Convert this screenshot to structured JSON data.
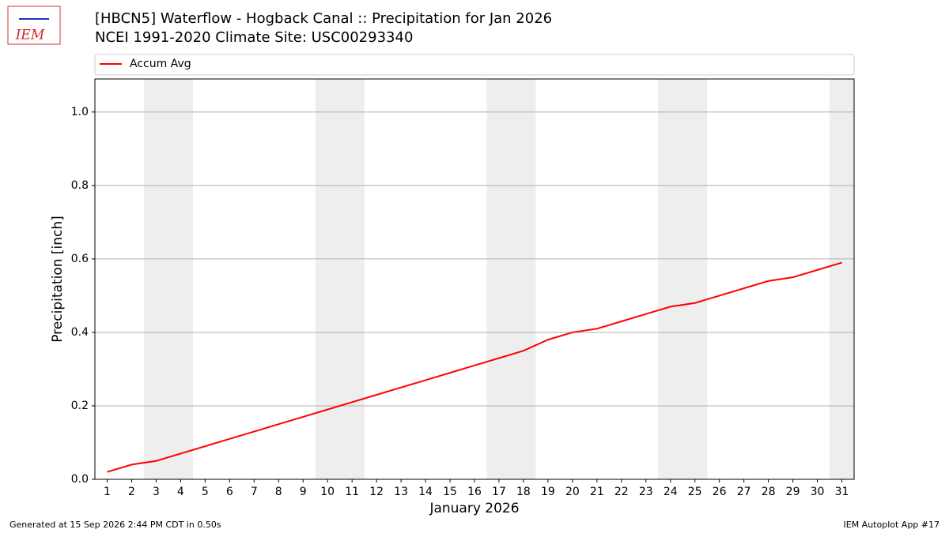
{
  "chart_data": {
    "type": "line",
    "title": "[HBCN5] Waterflow - Hogback Canal :: Precipitation for Jan 2026",
    "subtitle": "NCEI 1991-2020 Climate Site: USC00293340",
    "xlabel": "January 2026",
    "ylabel": "Precipitation [inch]",
    "x": [
      1,
      2,
      3,
      4,
      5,
      6,
      7,
      8,
      9,
      10,
      11,
      12,
      13,
      14,
      15,
      16,
      17,
      18,
      19,
      20,
      21,
      22,
      23,
      24,
      25,
      26,
      27,
      28,
      29,
      30,
      31
    ],
    "series": [
      {
        "name": "Accum Avg",
        "color": "#ff0000",
        "values": [
          0.02,
          0.04,
          0.05,
          0.07,
          0.09,
          0.11,
          0.13,
          0.15,
          0.17,
          0.19,
          0.21,
          0.23,
          0.25,
          0.27,
          0.29,
          0.31,
          0.33,
          0.35,
          0.38,
          0.4,
          0.41,
          0.43,
          0.45,
          0.47,
          0.48,
          0.5,
          0.52,
          0.54,
          0.55,
          0.57,
          0.59
        ]
      }
    ],
    "weekend_spans": [
      [
        2.5,
        4.5
      ],
      [
        9.5,
        11.5
      ],
      [
        16.5,
        18.5
      ],
      [
        23.5,
        25.5
      ],
      [
        30.5,
        31.5
      ]
    ],
    "xlim": [
      0.5,
      31.5
    ],
    "xticks": [
      1,
      2,
      3,
      4,
      5,
      6,
      7,
      8,
      9,
      10,
      11,
      12,
      13,
      14,
      15,
      16,
      17,
      18,
      19,
      20,
      21,
      22,
      23,
      24,
      25,
      26,
      27,
      28,
      29,
      30,
      31
    ],
    "ylim": [
      0,
      1.09
    ],
    "yticks": [
      {
        "value": 0,
        "label": "0.0"
      },
      0.2,
      0.4,
      0.6,
      0.8,
      {
        "value": 1,
        "label": "1.0"
      }
    ],
    "grid": true,
    "legend": "top"
  },
  "logo_text": "IEM",
  "footer_left": "Generated at 15 Sep 2026 2:44 PM CDT in 0.50s",
  "footer_right": "IEM Autoplot App #17"
}
